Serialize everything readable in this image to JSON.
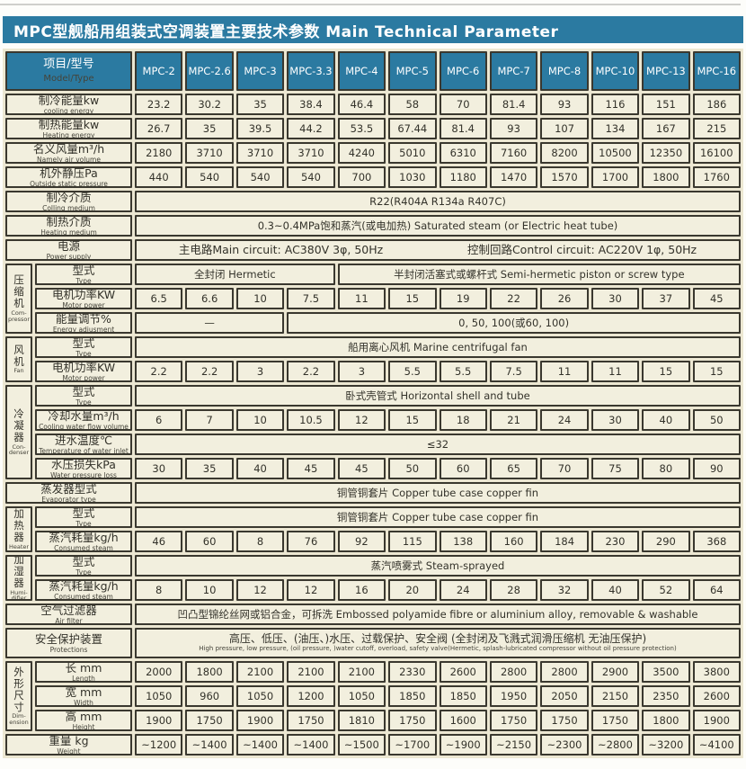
{
  "title": "MPC型舰船用组装式空调装置主要技术参数  Main Technical Parameter",
  "colors": {
    "teal": "#2b7aa1",
    "cream": "#f2efde",
    "cream_bg": "#ece7d2",
    "border": "#3a382f"
  },
  "table": {
    "header": {
      "label_zh": "项目/型号",
      "label_en": "Model/Type",
      "models": [
        "MPC-2",
        "MPC-2.6",
        "MPC-3",
        "MPC-3.3",
        "MPC-4",
        "MPC-5",
        "MPC-6",
        "MPC-7",
        "MPC-8",
        "MPC-10",
        "MPC-13",
        "MPC-16"
      ]
    },
    "rows": [
      {
        "zh": "制冷能量kw",
        "en": "cooling energy",
        "values": [
          "23.2",
          "30.2",
          "35",
          "38.4",
          "46.4",
          "58",
          "70",
          "81.4",
          "93",
          "116",
          "151",
          "186"
        ]
      },
      {
        "zh": "制热能量kw",
        "en": "Heating energy",
        "values": [
          "26.7",
          "35",
          "39.5",
          "44.2",
          "53.5",
          "67.44",
          "81.4",
          "93",
          "107",
          "134",
          "167",
          "215"
        ]
      },
      {
        "zh": "名义风量m³/h",
        "en": "Namely air volume",
        "values": [
          "2180",
          "3710",
          "3710",
          "3710",
          "4240",
          "5010",
          "6310",
          "7160",
          "8200",
          "10500",
          "12350",
          "16100"
        ]
      },
      {
        "zh": "机外静压Pa",
        "en": "Outside static pressure",
        "values": [
          "440",
          "540",
          "540",
          "540",
          "700",
          "1030",
          "1180",
          "1470",
          "1570",
          "1700",
          "1800",
          "1760"
        ]
      },
      {
        "zh": "制冷介质",
        "en": "Colling medium",
        "span": "R22(R404A  R134a  R407C)"
      },
      {
        "zh": "制热介质",
        "en": "Heating medium",
        "span": "0.3~0.4MPa饱和蒸汽(或电加热)  Saturated steam (or Electric heat tube)"
      },
      {
        "zh": "电源",
        "en": "Power supply",
        "span_pair": [
          "主电路Main circuit: AC380V 3φ, 50Hz",
          "控制回路Control circuit: AC220V 1φ, 50Hz"
        ]
      },
      {
        "group": {
          "zh": "压\n缩\n机",
          "en": "Com-\npressor",
          "rows": 3
        },
        "zh": "型式",
        "en": "Type",
        "spans": [
          {
            "text": "全封闭  Hermetic",
            "cols": 4
          },
          {
            "text": "半封闭活塞式或螺杆式  Semi-hermetic piston or screw type",
            "cols": 8
          }
        ]
      },
      {
        "grouped": true,
        "zh": "电机功率KW",
        "en": "Motor power",
        "values": [
          "6.5",
          "6.6",
          "10",
          "7.5",
          "11",
          "15",
          "19",
          "22",
          "26",
          "30",
          "37",
          "45"
        ]
      },
      {
        "grouped": true,
        "zh": "能量调节%",
        "en": "Energy adjusment",
        "spans": [
          {
            "text": "—",
            "cols": 3
          },
          {
            "text": "0, 50, 100(或60, 100)",
            "cols": 9
          }
        ]
      },
      {
        "group": {
          "zh": "风\n机",
          "en": "Fan",
          "rows": 2
        },
        "zh": "型式",
        "en": "Type",
        "span": "船用离心风机  Marine centrifugal fan"
      },
      {
        "grouped": true,
        "zh": "电机功率KW",
        "en": "Motor power",
        "values": [
          "2.2",
          "2.2",
          "3",
          "2.2",
          "3",
          "5.5",
          "5.5",
          "7.5",
          "11",
          "11",
          "15",
          "15"
        ]
      },
      {
        "group": {
          "zh": "冷\n凝\n器",
          "en": "Con-\ndenser",
          "rows": 4
        },
        "zh": "型式",
        "en": "Type",
        "span": "卧式壳管式  Horizontal shell and tube"
      },
      {
        "grouped": true,
        "zh": "冷却水量m³/h",
        "en": "Cooling water flow volume",
        "values": [
          "6",
          "7",
          "10",
          "10.5",
          "12",
          "15",
          "18",
          "21",
          "24",
          "30",
          "40",
          "50"
        ]
      },
      {
        "grouped": true,
        "zh": "进水温度℃",
        "en": "Temperature of water inlet",
        "span": "≤32"
      },
      {
        "grouped": true,
        "zh": "水压损失kPa",
        "en": "Water pressure loss",
        "values": [
          "30",
          "35",
          "40",
          "45",
          "45",
          "50",
          "60",
          "65",
          "70",
          "75",
          "80",
          "90"
        ]
      },
      {
        "zh": "蒸发器型式",
        "en": "Evaporator type",
        "span": "铜管铜套片  Copper tube case copper fin"
      },
      {
        "group": {
          "zh": "加\n热\n器",
          "en": "Heater",
          "rows": 2
        },
        "zh": "型式",
        "en": "Type",
        "span": "铜管铜套片  Copper tube case copper fin"
      },
      {
        "grouped": true,
        "zh": "蒸汽耗量kg/h",
        "en": "Consumed steam",
        "values": [
          "46",
          "60",
          "8",
          "76",
          "92",
          "115",
          "138",
          "160",
          "184",
          "230",
          "290",
          "368"
        ]
      },
      {
        "group": {
          "zh": "加\n湿\n器",
          "en": "Humi-\ndifier",
          "rows": 2
        },
        "zh": "型式",
        "en": "Type",
        "span": "蒸汽喷雾式  Steam-sprayed"
      },
      {
        "grouped": true,
        "zh": "蒸汽耗量kg/h",
        "en": "Consumed steam",
        "values": [
          "8",
          "10",
          "12",
          "12",
          "16",
          "20",
          "24",
          "28",
          "32",
          "40",
          "52",
          "64"
        ]
      },
      {
        "zh": "空气过滤器",
        "en": "Air filter",
        "span": "凹凸型锦纶丝网或铝合金，可拆洗  Embossed polyamide fibre or aluminium alloy, removable & washable"
      },
      {
        "zh": "安全保护装置",
        "en": "Protections",
        "h": 34,
        "span2": {
          "zh": "高压、低压、(油压、)水压、过载保护、安全阀 (全封闭及飞溅式润滑压缩机 无油压保护)",
          "en": "High pressure, low pressure, (oil pressure, )water cutoff, overload, safety valve(Hermetic, splash-lubricated compressor without oil pressure protection)"
        }
      },
      {
        "group": {
          "zh": "外\n形\n尺\n寸",
          "en": "Dim-\nension",
          "rows": 3
        },
        "zh": "长 mm",
        "en": "Length",
        "values": [
          "2000",
          "1800",
          "2100",
          "2100",
          "2100",
          "2330",
          "2600",
          "2800",
          "2800",
          "2900",
          "3500",
          "3800"
        ]
      },
      {
        "grouped": true,
        "zh": "宽 mm",
        "en": "Width",
        "values": [
          "1050",
          "960",
          "1050",
          "1200",
          "1050",
          "1850",
          "1850",
          "1950",
          "2050",
          "2150",
          "2350",
          "2600"
        ]
      },
      {
        "grouped": true,
        "zh": "高 mm",
        "en": "Height",
        "values": [
          "1900",
          "1750",
          "1900",
          "1750",
          "1810",
          "1750",
          "1600",
          "1750",
          "1750",
          "1750",
          "1800",
          "1900"
        ]
      },
      {
        "zh": "重量 kg",
        "en": "Weight",
        "values": [
          "~1200",
          "~1400",
          "~1400",
          "~1400",
          "~1500",
          "~1700",
          "~1900",
          "~2150",
          "~2300",
          "~2800",
          "~3200",
          "~4100"
        ]
      }
    ]
  }
}
